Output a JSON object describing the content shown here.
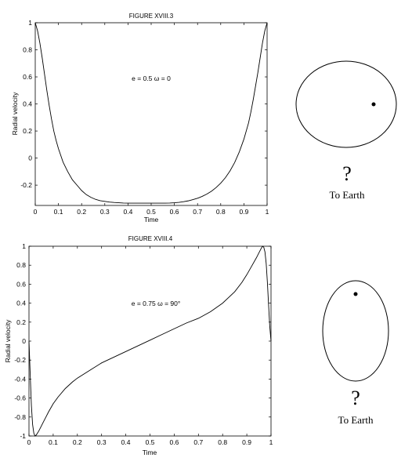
{
  "chart_data": [
    {
      "type": "line",
      "title": "FIGURE XVIII.3",
      "xlabel": "Time",
      "ylabel": "Radial velocity",
      "xlim": [
        0,
        1
      ],
      "ylim": [
        -0.35,
        1.0
      ],
      "xticks": [
        0,
        0.1,
        0.2,
        0.3,
        0.4,
        0.5,
        0.6,
        0.7,
        0.8,
        0.9,
        1
      ],
      "xtick_labels": [
        "0",
        "0.1",
        "0.2",
        "0.3",
        "0.4",
        "0.5",
        "0.6",
        "0.7",
        "0.8",
        "0.9",
        "1"
      ],
      "yticks": [
        -0.2,
        0,
        0.2,
        0.4,
        0.6,
        0.8,
        1
      ],
      "ytick_labels": [
        "-0.2",
        "0",
        "0.2",
        "0.4",
        "0.6",
        "0.8",
        "1"
      ],
      "annotation": "e = 0.5   ω = 0",
      "orbit_caption": "To Earth",
      "orbit_mark": "?",
      "series": [
        {
          "x": [
            0,
            0.01,
            0.02,
            0.03,
            0.04,
            0.05,
            0.06,
            0.07,
            0.08,
            0.09,
            0.1,
            0.12,
            0.14,
            0.16,
            0.18,
            0.2,
            0.22,
            0.24,
            0.26,
            0.28,
            0.3,
            0.32,
            0.34,
            0.36,
            0.38,
            0.4,
            0.42,
            0.44,
            0.46,
            0.48,
            0.5,
            0.52,
            0.54,
            0.56,
            0.58,
            0.6,
            0.62,
            0.64,
            0.66,
            0.68,
            0.7,
            0.72,
            0.74,
            0.76,
            0.78,
            0.8,
            0.82,
            0.84,
            0.86,
            0.88,
            0.9,
            0.91,
            0.92,
            0.93,
            0.94,
            0.95,
            0.96,
            0.97,
            0.98,
            0.99,
            1
          ],
          "y": [
            1.0,
            0.94,
            0.85,
            0.74,
            0.62,
            0.5,
            0.39,
            0.29,
            0.2,
            0.13,
            0.07,
            -0.03,
            -0.1,
            -0.16,
            -0.2,
            -0.24,
            -0.27,
            -0.29,
            -0.305,
            -0.315,
            -0.32,
            -0.325,
            -0.328,
            -0.33,
            -0.332,
            -0.333,
            -0.333,
            -0.333,
            -0.333,
            -0.333,
            -0.333,
            -0.333,
            -0.333,
            -0.333,
            -0.332,
            -0.33,
            -0.327,
            -0.322,
            -0.316,
            -0.307,
            -0.297,
            -0.283,
            -0.266,
            -0.245,
            -0.218,
            -0.185,
            -0.145,
            -0.095,
            -0.033,
            0.045,
            0.14,
            0.2,
            0.26,
            0.34,
            0.43,
            0.53,
            0.63,
            0.74,
            0.85,
            0.94,
            1.0
          ]
        }
      ]
    },
    {
      "type": "line",
      "title": "FIGURE XVIII.4",
      "xlabel": "Time",
      "ylabel": "Radial velocity",
      "xlim": [
        0,
        1
      ],
      "ylim": [
        -1,
        1
      ],
      "xticks": [
        0,
        0.1,
        0.2,
        0.3,
        0.4,
        0.5,
        0.6,
        0.7,
        0.8,
        0.9,
        1
      ],
      "xtick_labels": [
        "0",
        "0.1",
        "0.2",
        "0.3",
        "0.4",
        "0.5",
        "0.6",
        "0.7",
        "0.8",
        "0.9",
        "1"
      ],
      "yticks": [
        -1,
        -0.8,
        -0.6,
        -0.4,
        -0.2,
        0,
        0.2,
        0.4,
        0.6,
        0.8,
        1
      ],
      "ytick_labels": [
        "-1",
        "-0.8",
        "-0.6",
        "-0.4",
        "-0.2",
        "0",
        "0.2",
        "0.4",
        "0.6",
        "0.8",
        "1"
      ],
      "annotation": "e = 0.75   ω = 90°",
      "orbit_caption": "To Earth",
      "orbit_mark": "?",
      "series": [
        {
          "x": [
            0,
            0.005,
            0.01,
            0.015,
            0.02,
            0.025,
            0.03,
            0.035,
            0.04,
            0.05,
            0.06,
            0.07,
            0.08,
            0.1,
            0.12,
            0.15,
            0.18,
            0.2,
            0.25,
            0.3,
            0.35,
            0.4,
            0.45,
            0.5,
            0.55,
            0.6,
            0.65,
            0.7,
            0.75,
            0.8,
            0.85,
            0.88,
            0.9,
            0.92,
            0.94,
            0.95,
            0.96,
            0.965,
            0.97,
            0.975,
            0.98,
            0.985,
            0.99,
            0.995,
            1
          ],
          "y": [
            0,
            -0.35,
            -0.68,
            -0.88,
            -0.97,
            -1.0,
            -0.99,
            -0.97,
            -0.95,
            -0.9,
            -0.85,
            -0.8,
            -0.75,
            -0.66,
            -0.59,
            -0.5,
            -0.43,
            -0.39,
            -0.31,
            -0.23,
            -0.17,
            -0.11,
            -0.05,
            0.01,
            0.07,
            0.13,
            0.19,
            0.24,
            0.31,
            0.4,
            0.52,
            0.62,
            0.7,
            0.79,
            0.88,
            0.93,
            0.98,
            1.0,
            0.99,
            0.94,
            0.82,
            0.62,
            0.38,
            0.15,
            0
          ]
        }
      ]
    }
  ]
}
